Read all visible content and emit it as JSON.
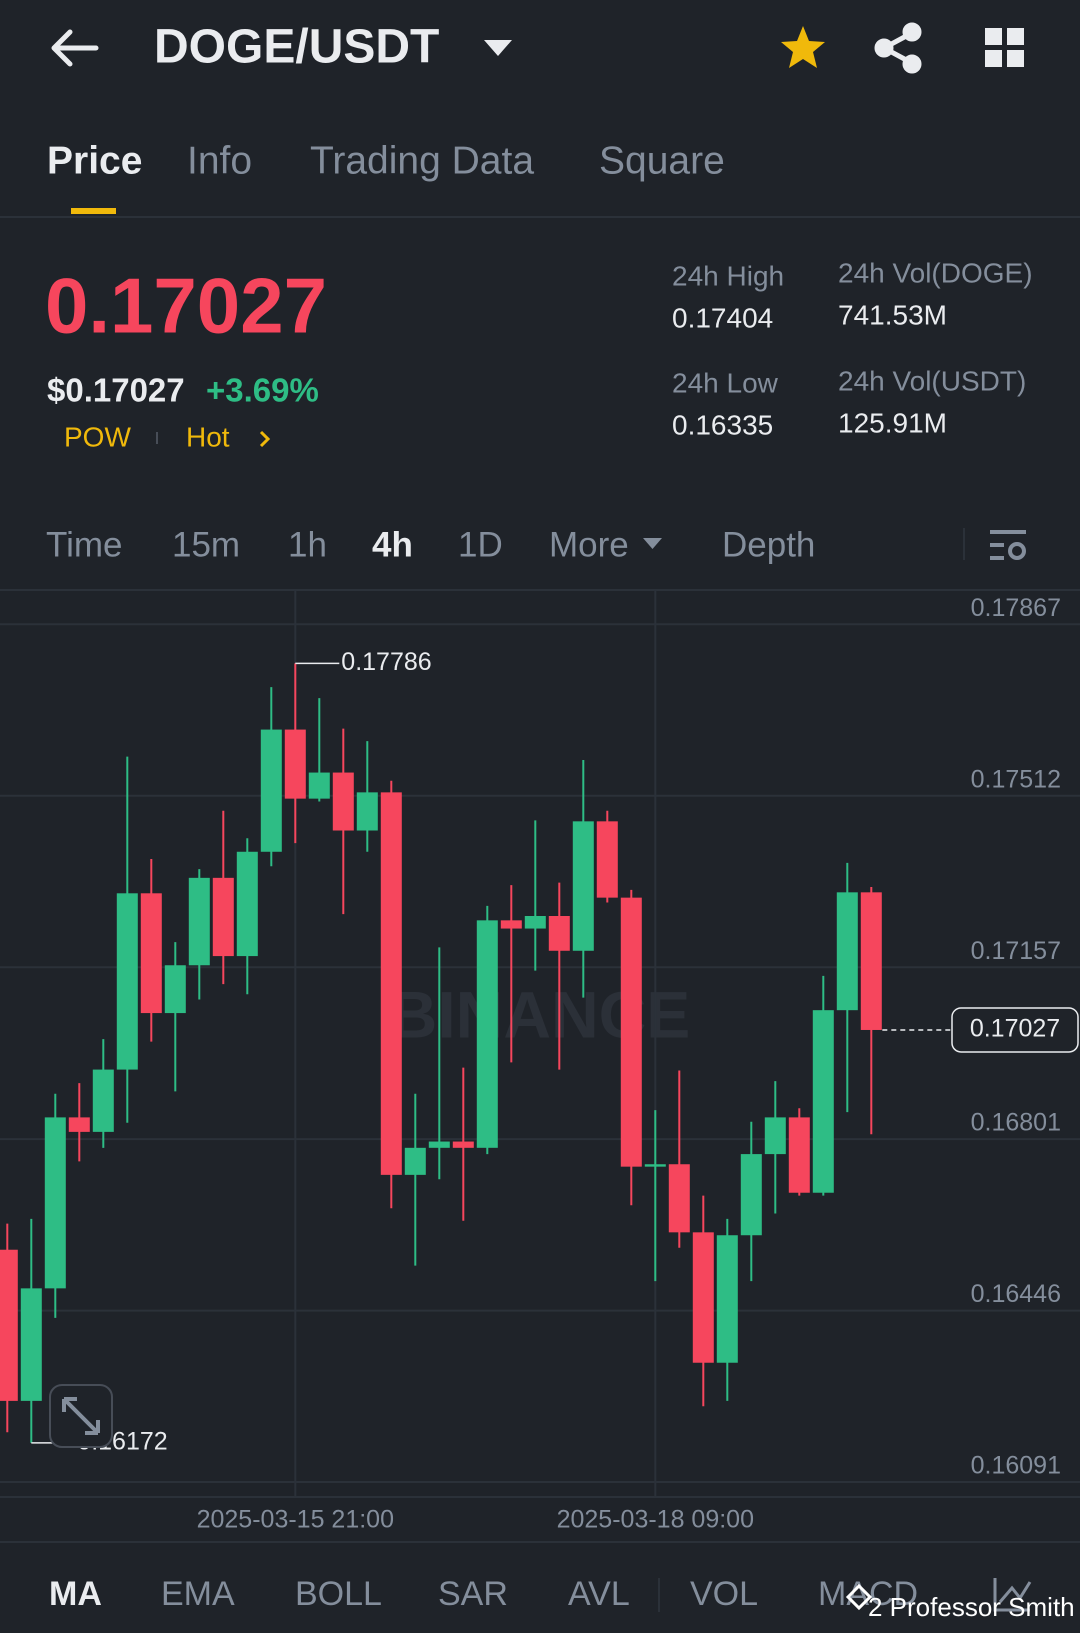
{
  "header": {
    "pair": "DOGE/USDT"
  },
  "tabs": [
    "Price",
    "Info",
    "Trading Data",
    "Square"
  ],
  "ticker": {
    "price": "0.17027",
    "usd_price": "$0.17027",
    "change": "+3.69%",
    "tags": [
      "POW",
      "Hot"
    ],
    "stats": [
      {
        "label": "24h High",
        "value": "0.17404"
      },
      {
        "label": "24h Vol(DOGE)",
        "value": "741.53M"
      },
      {
        "label": "24h Low",
        "value": "0.16335"
      },
      {
        "label": "24h Vol(USDT)",
        "value": "125.91M"
      }
    ]
  },
  "intervals": [
    "Time",
    "15m",
    "1h",
    "4h",
    "1D",
    "More",
    "Depth"
  ],
  "indicators": [
    "MA",
    "EMA",
    "BOLL",
    "SAR",
    "AVL",
    "VOL",
    "MACD"
  ],
  "credit": "2 Professor Smith",
  "chart_data": {
    "type": "candlestick",
    "watermark": "BINANCE",
    "up_color": "#2ebd85",
    "down_color": "#f6465d",
    "categories": [
      null,
      null,
      null,
      null,
      null,
      null,
      null,
      null,
      null,
      null,
      null,
      null,
      "2025-03-15 21:00",
      null,
      null,
      null,
      null,
      null,
      null,
      null,
      null,
      null,
      null,
      null,
      null,
      null,
      null,
      "2025-03-18 09:00",
      null,
      null,
      null,
      null,
      null,
      null,
      null,
      null,
      null
    ],
    "open": [
      0.16572,
      0.16259,
      0.16492,
      0.16846,
      0.16816,
      0.16945,
      0.1731,
      0.17062,
      0.17161,
      0.17342,
      0.1718,
      0.17396,
      0.17649,
      0.17506,
      0.1756,
      0.1744,
      0.17519,
      0.16727,
      0.16783,
      0.16796,
      0.16783,
      0.17254,
      0.17237,
      0.17263,
      0.17191,
      0.17459,
      0.17301,
      0.16744,
      0.16749,
      0.16608,
      0.16338,
      0.16602,
      0.1677,
      0.16846,
      0.1669,
      0.17068,
      0.17312
    ],
    "high": [
      0.16626,
      0.16636,
      0.16895,
      0.16917,
      0.17008,
      0.17593,
      0.17381,
      0.17209,
      0.1736,
      0.17481,
      0.17424,
      0.17737,
      0.17786,
      0.17714,
      0.17651,
      0.17625,
      0.17543,
      0.16895,
      0.17198,
      0.16949,
      0.17284,
      0.17327,
      0.17461,
      0.17332,
      0.17586,
      0.17481,
      0.17317,
      0.16861,
      0.16943,
      0.16684,
      0.16636,
      0.16837,
      0.16921,
      0.16865,
      0.17139,
      0.17373,
      0.17323
    ],
    "low": [
      0.16194,
      0.16172,
      0.16431,
      0.16755,
      0.16783,
      0.16835,
      0.17003,
      0.169,
      0.1709,
      0.17122,
      0.17101,
      0.17366,
      0.17414,
      0.175,
      0.17267,
      0.17396,
      0.16658,
      0.16539,
      0.16718,
      0.16632,
      0.1677,
      0.1696,
      0.1715,
      0.16945,
      0.17094,
      0.17291,
      0.16664,
      0.16507,
      0.16576,
      0.16248,
      0.16259,
      0.16507,
      0.16647,
      0.16684,
      0.16684,
      0.16857,
      0.16811
    ],
    "close": [
      0.16259,
      0.16492,
      0.16846,
      0.16816,
      0.16945,
      0.1731,
      0.17062,
      0.17161,
      0.17342,
      0.1718,
      0.17396,
      0.17649,
      0.17506,
      0.1756,
      0.1744,
      0.17519,
      0.16727,
      0.16783,
      0.16796,
      0.16783,
      0.17254,
      0.17237,
      0.17263,
      0.17191,
      0.17459,
      0.17301,
      0.16744,
      0.16749,
      0.16608,
      0.16338,
      0.16602,
      0.1677,
      0.16846,
      0.1669,
      0.17068,
      0.17312,
      0.17027
    ],
    "ylim": [
      0.1606,
      0.17938
    ],
    "yticks": [
      0.17867,
      0.17512,
      0.17157,
      0.16801,
      0.16446,
      0.16091
    ],
    "grid": true
  }
}
